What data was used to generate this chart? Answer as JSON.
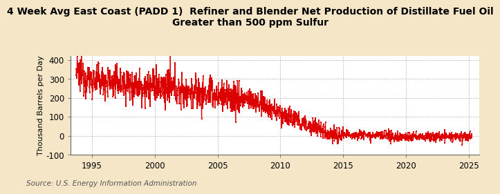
{
  "title": "4 Week Avg East Coast (PADD 1)  Refiner and Blender Net Production of Distillate Fuel Oil\nGreater than 500 ppm Sulfur",
  "ylabel": "Thousand Barrels per Day",
  "source": "Source: U.S. Energy Information Administration",
  "background_color": "#f5e6c8",
  "plot_background_color": "#ffffff",
  "line_color": "#dd0000",
  "grid_color": "#999999",
  "ylim": [
    -100,
    420
  ],
  "yticks": [
    -100,
    0,
    100,
    200,
    300,
    400
  ],
  "xlim_start": 1993.3,
  "xlim_end": 2025.8,
  "xticks": [
    1995,
    2000,
    2005,
    2010,
    2015,
    2020,
    2025
  ],
  "title_fontsize": 10.0,
  "ylabel_fontsize": 8.0,
  "tick_fontsize": 8.5,
  "source_fontsize": 7.5,
  "marker_size": 1.5,
  "line_width": 0.9
}
